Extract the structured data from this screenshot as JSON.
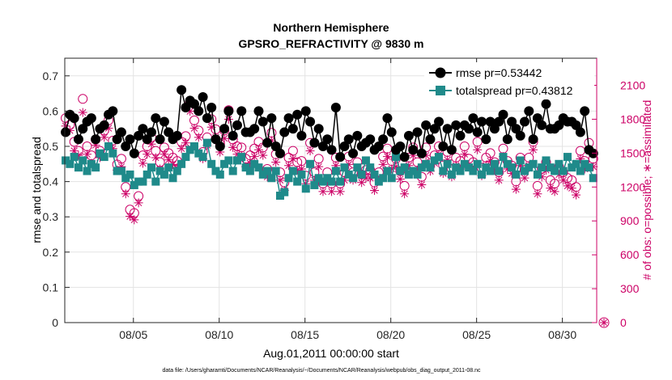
{
  "chart_data": {
    "type": "line",
    "title": "Northern Hemisphere",
    "subtitle": "GPSRO_REFRACTIVITY @ 9830 m",
    "xlabel": "Aug.01,2011 00:00:00 start",
    "ylabel": "rmse and totalspread",
    "y2label": "# of obs: o=possible; ∗=assimilated",
    "footer": "data file: /Users/gharamti/Documents/NCAR/Reanalysis/~/Documents/NCAR/Reanalysis/webpub/obs_diag_output_2011-08.nc",
    "xlim": [
      1.0,
      32.0
    ],
    "ylim": [
      0,
      0.75
    ],
    "y2lim": [
      0,
      2340
    ],
    "x_ticks": [
      5,
      10,
      15,
      20,
      25,
      30
    ],
    "x_tick_labels": [
      "08/05",
      "08/10",
      "08/15",
      "08/20",
      "08/25",
      "08/30"
    ],
    "y_ticks": [
      0,
      0.1,
      0.2,
      0.3,
      0.4,
      0.5,
      0.6,
      0.7
    ],
    "y_tick_labels": [
      "0",
      "0.1",
      "0.2",
      "0.3",
      "0.4",
      "0.5",
      "0.6",
      "0.7"
    ],
    "y2_ticks": [
      0,
      300,
      600,
      900,
      1200,
      1500,
      1800,
      2100
    ],
    "y2_tick_labels": [
      "0",
      "300",
      "600",
      "900",
      "1200",
      "1500",
      "1800",
      "2100"
    ],
    "legend_position": "top-right",
    "colors": {
      "rmse": "#000000",
      "totalspread": "#1f8a8a",
      "obs": "#cc0066"
    },
    "series": [
      {
        "name": "rmse pr=0.53442",
        "marker": "circle",
        "values": [
          0.54,
          0.59,
          0.58,
          0.52,
          0.55,
          0.57,
          0.58,
          0.52,
          0.55,
          0.56,
          0.59,
          0.6,
          0.52,
          0.54,
          0.5,
          0.52,
          0.48,
          0.53,
          0.55,
          0.52,
          0.54,
          0.58,
          0.52,
          0.57,
          0.54,
          0.52,
          0.53,
          0.66,
          0.61,
          0.63,
          0.62,
          0.6,
          0.64,
          0.58,
          0.61,
          0.52,
          0.5,
          0.55,
          0.6,
          0.53,
          0.56,
          0.6,
          0.54,
          0.54,
          0.55,
          0.6,
          0.57,
          0.51,
          0.58,
          0.5,
          0.48,
          0.54,
          0.58,
          0.55,
          0.59,
          0.53,
          0.6,
          0.57,
          0.51,
          0.55,
          0.5,
          0.52,
          0.49,
          0.61,
          0.47,
          0.5,
          0.52,
          0.48,
          0.53,
          0.5,
          0.51,
          0.52,
          0.49,
          0.5,
          0.52,
          0.58,
          0.54,
          0.49,
          0.5,
          0.47,
          0.53,
          0.49,
          0.54,
          0.48,
          0.56,
          0.52,
          0.55,
          0.57,
          0.5,
          0.55,
          0.49,
          0.56,
          0.53,
          0.56,
          0.55,
          0.58,
          0.54,
          0.57,
          0.52,
          0.57,
          0.55,
          0.57,
          0.59,
          0.52,
          0.57,
          0.55,
          0.53,
          0.57,
          0.6,
          0.52,
          0.58,
          0.56,
          0.62,
          0.55,
          0.55,
          0.56,
          0.58,
          0.57,
          0.57,
          0.56,
          0.54,
          0.6,
          0.49,
          0.48
        ]
      },
      {
        "name": "totalspread pr=0.43812",
        "marker": "square",
        "values": [
          0.46,
          0.45,
          0.47,
          0.44,
          0.46,
          0.43,
          0.45,
          0.44,
          0.48,
          0.47,
          0.5,
          0.48,
          0.43,
          0.43,
          0.41,
          0.42,
          0.39,
          0.4,
          0.4,
          0.42,
          0.44,
          0.4,
          0.43,
          0.42,
          0.44,
          0.41,
          0.43,
          0.45,
          0.47,
          0.49,
          0.5,
          0.48,
          0.47,
          0.51,
          0.45,
          0.43,
          0.42,
          0.45,
          0.46,
          0.43,
          0.46,
          0.47,
          0.44,
          0.43,
          0.45,
          0.44,
          0.42,
          0.43,
          0.41,
          0.43,
          0.36,
          0.37,
          0.41,
          0.43,
          0.4,
          0.42,
          0.38,
          0.45,
          0.39,
          0.41,
          0.4,
          0.41,
          0.4,
          0.43,
          0.4,
          0.44,
          0.42,
          0.41,
          0.44,
          0.42,
          0.46,
          0.44,
          0.42,
          0.4,
          0.41,
          0.43,
          0.41,
          0.47,
          0.43,
          0.44,
          0.42,
          0.43,
          0.42,
          0.44,
          0.45,
          0.44,
          0.46,
          0.47,
          0.43,
          0.45,
          0.42,
          0.44,
          0.43,
          0.45,
          0.44,
          0.43,
          0.45,
          0.42,
          0.44,
          0.43,
          0.45,
          0.43,
          0.47,
          0.45,
          0.44,
          0.42,
          0.46,
          0.43,
          0.44,
          0.45,
          0.42,
          0.44,
          0.46,
          0.44,
          0.43,
          0.45,
          0.43,
          0.47,
          0.44,
          0.45,
          0.43,
          0.45,
          0.44,
          0.41
        ]
      },
      {
        "name": "# of obs possible",
        "marker": "open-circle",
        "axis": "right",
        "values": [
          1810,
          1750,
          1600,
          1520,
          1980,
          1560,
          1480,
          1620,
          1520,
          1700,
          1790,
          1610,
          1400,
          1450,
          1200,
          1000,
          970,
          1120,
          1480,
          1560,
          1640,
          1520,
          1420,
          1550,
          1500,
          1460,
          1430,
          1600,
          1650,
          1950,
          1790,
          1700,
          1510,
          1640,
          1800,
          1710,
          1580,
          1700,
          1880,
          1620,
          1560,
          1550,
          1450,
          1480,
          1540,
          1600,
          1550,
          1360,
          1680,
          1490,
          1330,
          1240,
          1460,
          1520,
          1420,
          1430,
          1300,
          1590,
          1330,
          1450,
          1230,
          1330,
          1230,
          1460,
          1230,
          1330,
          1470,
          1330,
          1420,
          1310,
          1350,
          1350,
          1240,
          1330,
          1470,
          1540,
          1430,
          1450,
          1340,
          1210,
          1460,
          1550,
          1420,
          1290,
          1550,
          1410,
          1480,
          1560,
          1390,
          1510,
          1360,
          1460,
          1430,
          1560,
          1450,
          1420,
          1600,
          1370,
          1460,
          1500,
          1420,
          1330,
          1540,
          1430,
          1390,
          1250,
          1460,
          1350,
          1460,
          1600,
          1210,
          1360,
          1420,
          1260,
          1230,
          1380,
          1330,
          1280,
          1260,
          1200,
          1520,
          1430,
          1590,
          1450
        ]
      },
      {
        "name": "# of obs assimilated",
        "marker": "asterisk",
        "axis": "right",
        "values": [
          1740,
          1700,
          1520,
          1480,
          1860,
          1490,
          1410,
          1570,
          1460,
          1640,
          1720,
          1540,
          1350,
          1380,
          1140,
          940,
          910,
          1060,
          1410,
          1490,
          1580,
          1460,
          1360,
          1490,
          1440,
          1400,
          1370,
          1540,
          1590,
          1870,
          1720,
          1640,
          1450,
          1570,
          1730,
          1640,
          1510,
          1630,
          1800,
          1550,
          1490,
          1480,
          1380,
          1410,
          1470,
          1530,
          1480,
          1290,
          1610,
          1420,
          1260,
          1170,
          1390,
          1450,
          1350,
          1360,
          1230,
          1520,
          1260,
          1380,
          1160,
          1260,
          1160,
          1390,
          1160,
          1260,
          1400,
          1260,
          1350,
          1240,
          1280,
          1280,
          1170,
          1260,
          1400,
          1470,
          1360,
          1380,
          1270,
          1140,
          1390,
          1480,
          1350,
          1220,
          1480,
          1340,
          1410,
          1490,
          1320,
          1440,
          1290,
          1390,
          1360,
          1490,
          1380,
          1350,
          1530,
          1300,
          1390,
          1430,
          1350,
          1260,
          1470,
          1360,
          1320,
          1180,
          1390,
          1280,
          1390,
          1530,
          1140,
          1290,
          1350,
          1190,
          1160,
          1310,
          1260,
          1210,
          1190,
          1130,
          1450,
          1360,
          1520,
          1380
        ]
      }
    ],
    "x_start": 1.05,
    "x_step": 0.25
  }
}
